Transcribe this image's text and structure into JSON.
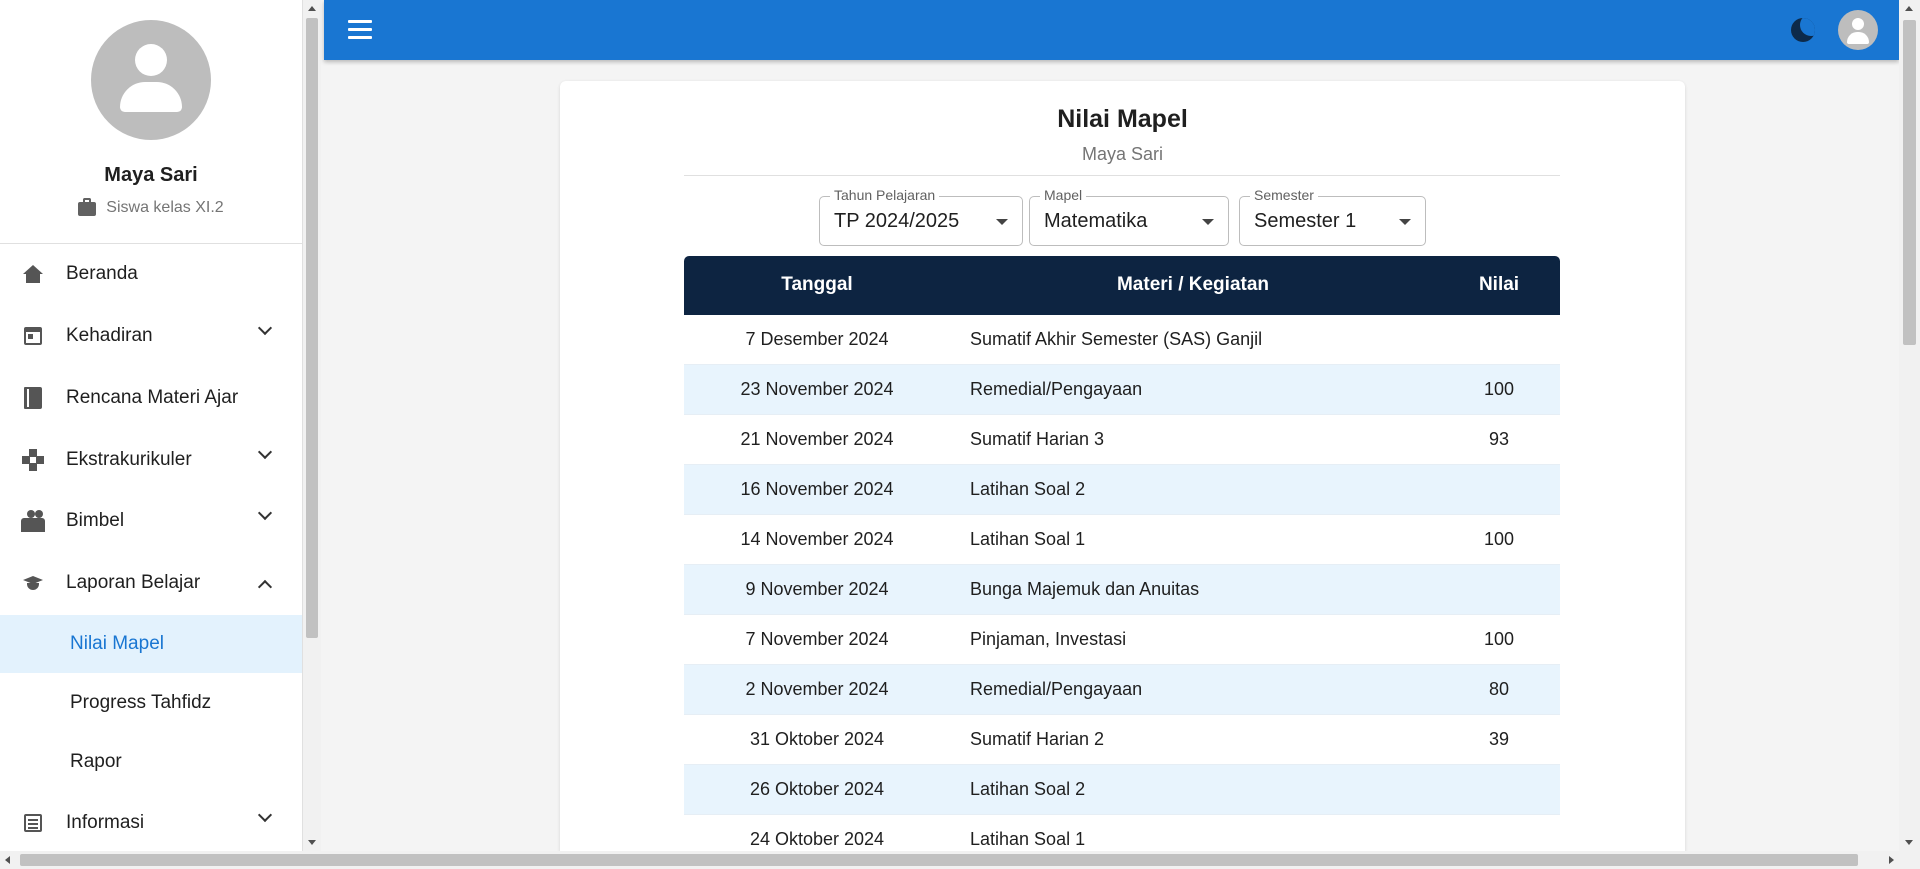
{
  "profile": {
    "name": "Maya Sari",
    "role": "Siswa kelas XI.2"
  },
  "sidebar": {
    "items": [
      {
        "label": "Beranda",
        "icon": "home-icon"
      },
      {
        "label": "Kehadiran",
        "icon": "calendar-icon"
      },
      {
        "label": "Rencana Materi Ajar",
        "icon": "book-icon"
      },
      {
        "label": "Ekstrakurikuler",
        "icon": "gamepad-icon"
      },
      {
        "label": "Bimbel",
        "icon": "people-icon"
      },
      {
        "label": "Laporan Belajar",
        "icon": "school-icon"
      },
      {
        "label": "Informasi",
        "icon": "news-icon"
      }
    ],
    "subitems": [
      {
        "label": "Nilai Mapel"
      },
      {
        "label": "Progress Tahfidz"
      },
      {
        "label": "Rapor"
      }
    ]
  },
  "colors": {
    "topbar": "#1976d2",
    "table_header": "#0d2441",
    "active_item": "#e3f2fd",
    "active_text": "#1976d2"
  },
  "main": {
    "title": "Nilai Mapel",
    "subtitle": "Maya Sari",
    "filters": {
      "tahun": {
        "legend": "Tahun Pelajaran",
        "value": "TP 2024/2025"
      },
      "mapel": {
        "legend": "Mapel",
        "value": "Matematika"
      },
      "semester": {
        "legend": "Semester",
        "value": "Semester 1"
      }
    },
    "table": {
      "headers": {
        "date": "Tanggal",
        "material": "Materi / Kegiatan",
        "score": "Nilai"
      },
      "rows": [
        {
          "date": "7 Desember 2024",
          "material": "Sumatif Akhir Semester (SAS) Ganjil",
          "score": ""
        },
        {
          "date": "23 November 2024",
          "material": "Remedial/Pengayaan",
          "score": "100"
        },
        {
          "date": "21 November 2024",
          "material": "Sumatif Harian 3",
          "score": "93"
        },
        {
          "date": "16 November 2024",
          "material": "Latihan Soal 2",
          "score": ""
        },
        {
          "date": "14 November 2024",
          "material": "Latihan Soal 1",
          "score": "100"
        },
        {
          "date": "9 November 2024",
          "material": "Bunga Majemuk dan Anuitas",
          "score": ""
        },
        {
          "date": "7 November 2024",
          "material": "Pinjaman, Investasi",
          "score": "100"
        },
        {
          "date": "2 November 2024",
          "material": "Remedial/Pengayaan",
          "score": "80"
        },
        {
          "date": "31 Oktober 2024",
          "material": "Sumatif Harian 2",
          "score": "39"
        },
        {
          "date": "26 Oktober 2024",
          "material": "Latihan Soal 2",
          "score": ""
        },
        {
          "date": "24 Oktober 2024",
          "material": "Latihan Soal 1",
          "score": ""
        }
      ]
    }
  }
}
